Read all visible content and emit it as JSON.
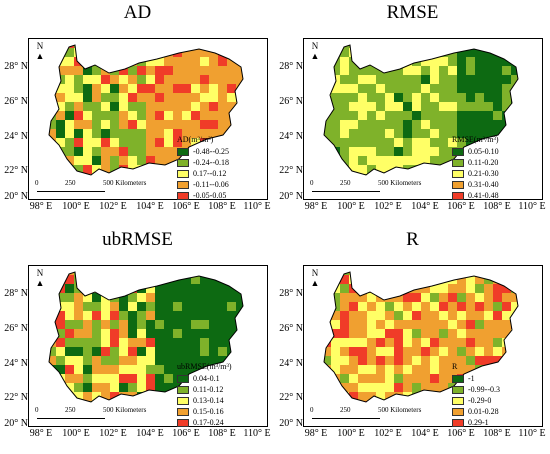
{
  "latitude_labels": [
    "28° N",
    "26° N",
    "24° N",
    "22° N",
    "20° N"
  ],
  "longitude_labels": [
    "98° E",
    "100° E",
    "102° E",
    "104° E",
    "106° E",
    "108° E",
    "110° E"
  ],
  "north_label": "N",
  "scale": {
    "zero": "0",
    "mid": "250",
    "end": "500 Kilometers"
  },
  "panels": [
    {
      "title": "AD",
      "legend_title": "AD(m³/m³)",
      "classes": [
        {
          "label": "-0.48--0.25",
          "color": "#0d6a12"
        },
        {
          "label": "-0.24--0.18",
          "color": "#7fb22a"
        },
        {
          "label": "0.17--0.12",
          "color": "#ffff66"
        },
        {
          "label": "-0.11--0.06",
          "color": "#f0a030"
        },
        {
          "label": "-0.05-0.05",
          "color": "#f03c28"
        }
      ]
    },
    {
      "title": "RMSE",
      "legend_title": "RMSE(m³/m³)",
      "classes": [
        {
          "label": "0.05-0.10",
          "color": "#0d6a12"
        },
        {
          "label": "0.11-0.20",
          "color": "#7fb22a"
        },
        {
          "label": "0.21-0.30",
          "color": "#ffff66"
        },
        {
          "label": "0.31-0.40",
          "color": "#f0a030"
        },
        {
          "label": "0.41-0.48",
          "color": "#f03c28"
        }
      ]
    },
    {
      "title": "ubRMSE",
      "legend_title": "ubRMSE(m³/m³)",
      "classes": [
        {
          "label": "0.04-0.1",
          "color": "#0d6a12"
        },
        {
          "label": "0.11-0.12",
          "color": "#7fb22a"
        },
        {
          "label": "0.13-0.14",
          "color": "#ffff66"
        },
        {
          "label": "0.15-0.16",
          "color": "#f0a030"
        },
        {
          "label": "0.17-0.24",
          "color": "#f03c28"
        }
      ]
    },
    {
      "title": "R",
      "legend_title": "R",
      "classes": [
        {
          "label": "-1",
          "color": "#0d6a12"
        },
        {
          "label": "-0.99--0.3",
          "color": "#7fb22a"
        },
        {
          "label": "-0.29-0",
          "color": "#ffff66"
        },
        {
          "label": "0.01-0.28",
          "color": "#f0a030"
        },
        {
          "label": "0.29-1",
          "color": "#f03c28"
        }
      ]
    }
  ]
}
